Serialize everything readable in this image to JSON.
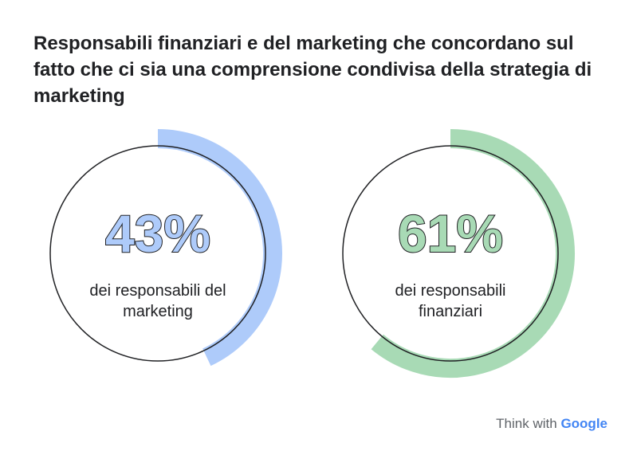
{
  "title": "Responsabili finanziari e del marketing che concordano sul fatto che ci sia una comprensione condivisa della strategia di marketing",
  "chart_data": [
    {
      "type": "donut",
      "value": 43,
      "value_label": "43%",
      "label": "dei responsabili del marketing",
      "color": "#aecbfa"
    },
    {
      "type": "donut",
      "value": 61,
      "value_label": "61%",
      "label": "dei responsabili finanziari",
      "color": "#a8dab5"
    }
  ],
  "footer": {
    "prefix": "Think with",
    "brand": "Google"
  }
}
